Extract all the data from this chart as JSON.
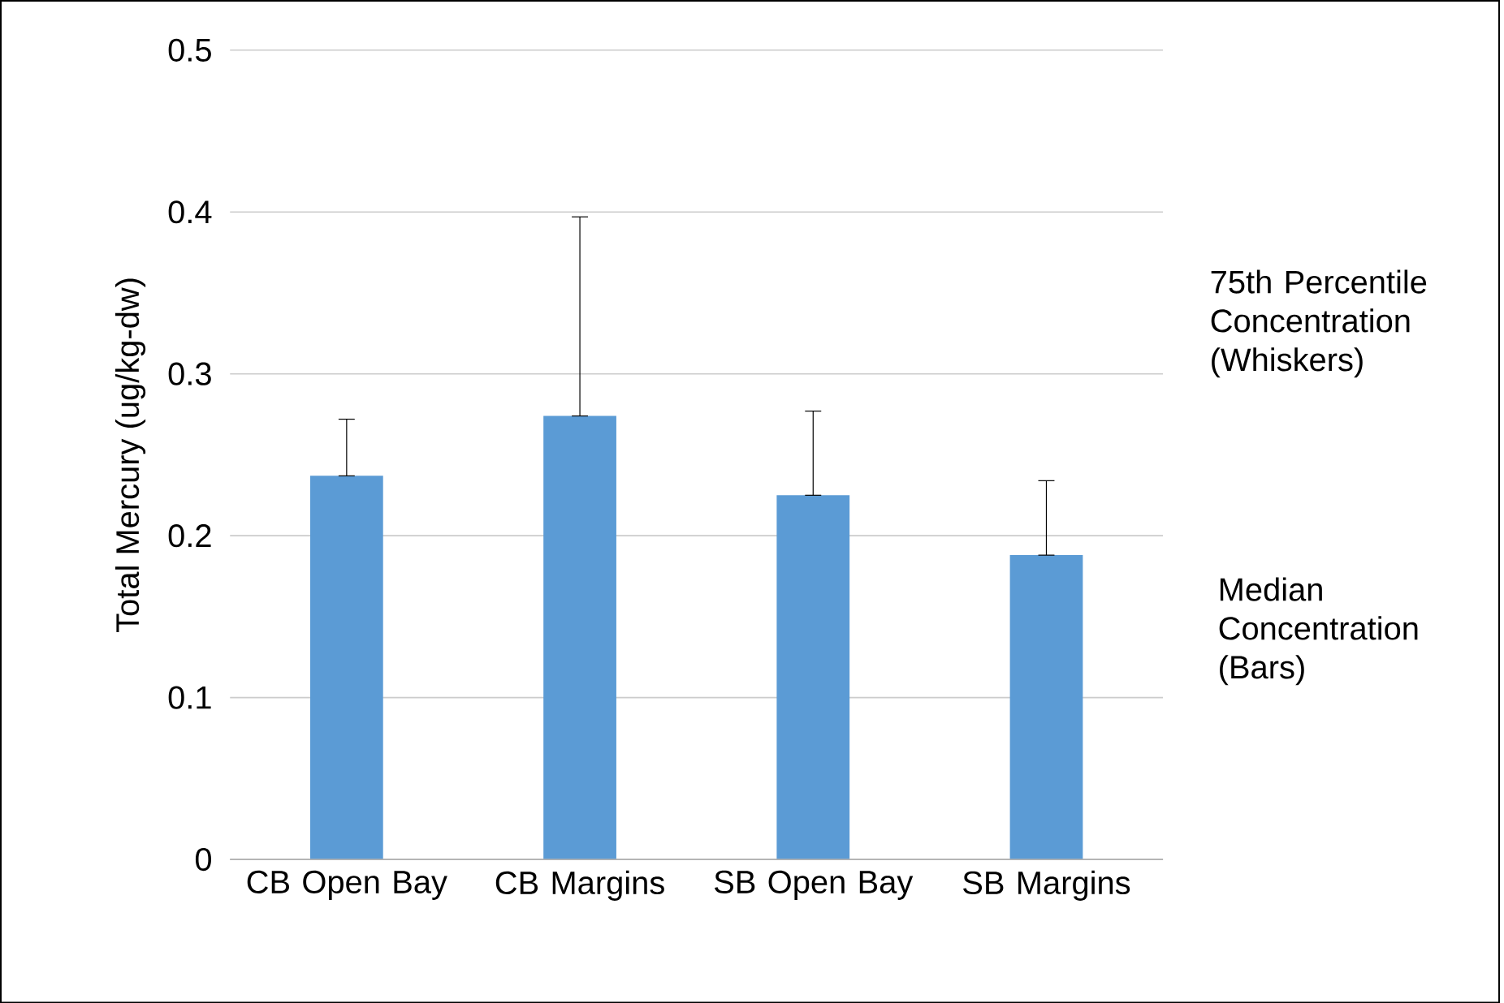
{
  "chart_data": {
    "type": "bar",
    "ylabel": "Total Mercury (ug/kg-dw)",
    "categories": [
      "CB Open Bay",
      "CB Margins",
      "SB Open Bay",
      "SB Margins"
    ],
    "values": [
      0.237,
      0.274,
      0.225,
      0.188
    ],
    "errors": [
      [
        0.237,
        0.272
      ],
      [
        0.274,
        0.397
      ],
      [
        0.225,
        0.277
      ],
      [
        0.188,
        0.234
      ]
    ],
    "color": "#5b9bd5",
    "ylim": [
      0,
      0.5
    ],
    "yticks": [
      0,
      0.1,
      0.2,
      0.3,
      0.4,
      0.5
    ],
    "grid": "y",
    "annotations": [
      "75th Percentile Concentration (Whiskers)",
      "Median Concentration (Bars)"
    ]
  }
}
